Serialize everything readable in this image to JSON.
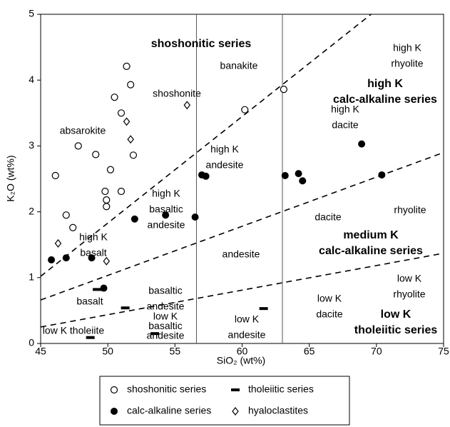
{
  "chart_data": {
    "type": "scatter",
    "xlabel": "SiO₂ (wt%)",
    "ylabel": "K₂O (wt%)",
    "xlim": [
      45,
      75
    ],
    "ylim": [
      0,
      5
    ],
    "xticks": [
      45,
      50,
      55,
      60,
      65,
      70,
      75
    ],
    "yticks": [
      0,
      1,
      2,
      3,
      4,
      5
    ],
    "series": [
      {
        "name": "shoshonitic series",
        "marker": "open-circle",
        "color": "#000000",
        "x": [
          46.1,
          47.8,
          49.1,
          46.9,
          47.4,
          49.8,
          49.9,
          49.9,
          50.2,
          51.0,
          50.5,
          51.0,
          51.4,
          51.7,
          51.9,
          60.2,
          63.1
        ],
        "values": [
          2.55,
          3.0,
          2.87,
          1.95,
          1.76,
          2.31,
          2.18,
          2.08,
          2.64,
          2.31,
          3.74,
          3.5,
          4.21,
          3.93,
          2.86,
          3.55,
          3.86
        ]
      },
      {
        "name": "calc-alkaline series",
        "marker": "filled-circle",
        "color": "#000000",
        "x": [
          45.8,
          46.9,
          48.8,
          49.7,
          52.0,
          54.3,
          56.5,
          57.0,
          57.3,
          63.2,
          64.2,
          64.5,
          68.9,
          70.4
        ],
        "values": [
          1.27,
          1.3,
          1.3,
          0.84,
          1.89,
          1.95,
          1.92,
          2.56,
          2.54,
          2.55,
          2.58,
          2.47,
          3.03,
          2.56
        ]
      },
      {
        "name": "tholeiitic series",
        "marker": "dash",
        "color": "#000000",
        "x": [
          49.2,
          51.3,
          53.5,
          48.7,
          61.6
        ],
        "values": [
          0.82,
          0.54,
          0.15,
          0.09,
          0.53
        ]
      },
      {
        "name": "hyaloclastites",
        "marker": "open-diamond",
        "color": "#000000",
        "x": [
          46.3,
          49.9,
          51.4,
          51.7,
          55.9
        ],
        "values": [
          1.52,
          1.25,
          3.37,
          3.1,
          3.62
        ]
      }
    ],
    "boundaries": [
      {
        "style": "dashed",
        "x": [
          45,
          69.6
        ],
        "values": [
          1.02,
          5
        ]
      },
      {
        "style": "dashed",
        "x": [
          45,
          75
        ],
        "values": [
          0.66,
          2.9
        ]
      },
      {
        "style": "dashed",
        "x": [
          45,
          75
        ],
        "values": [
          0.25,
          1.37
        ]
      },
      {
        "style": "solid",
        "x": [
          56.6,
          56.6
        ],
        "values": [
          0,
          5
        ]
      },
      {
        "style": "solid",
        "x": [
          63,
          63
        ],
        "values": [
          0,
          5
        ]
      }
    ],
    "annotations": [
      {
        "lines": [
          "shoshonitic series"
        ],
        "bold": true
      },
      {
        "lines": [
          "banakite"
        ]
      },
      {
        "lines": [
          "shoshonite"
        ]
      },
      {
        "lines": [
          "absarokite"
        ]
      },
      {
        "lines": [
          "high K",
          "andesite"
        ]
      },
      {
        "lines": [
          "high K",
          "basaltic",
          "andesite"
        ]
      },
      {
        "lines": [
          "high K",
          "basalt"
        ]
      },
      {
        "lines": [
          "andesite"
        ]
      },
      {
        "lines": [
          "basaltic",
          "andesite"
        ]
      },
      {
        "lines": [
          "basalt"
        ]
      },
      {
        "lines": [
          "low K",
          "basaltic",
          "andesite"
        ]
      },
      {
        "lines": [
          "low K",
          "andesite"
        ]
      },
      {
        "lines": [
          "low K tholeiite"
        ]
      },
      {
        "lines": [
          "high K",
          "rhyolite"
        ]
      },
      {
        "lines": [
          "high K",
          "calc-alkaline series"
        ],
        "bold": true
      },
      {
        "lines": [
          "high K",
          "dacite"
        ]
      },
      {
        "lines": [
          "rhyolite"
        ]
      },
      {
        "lines": [
          "dacite"
        ]
      },
      {
        "lines": [
          "medium K",
          "calc-alkaline series"
        ],
        "bold": true
      },
      {
        "lines": [
          "low K",
          "rhyolite"
        ]
      },
      {
        "lines": [
          "low K",
          "dacite"
        ]
      },
      {
        "lines": [
          "low K",
          "tholeiitic series"
        ],
        "bold": true
      }
    ]
  }
}
